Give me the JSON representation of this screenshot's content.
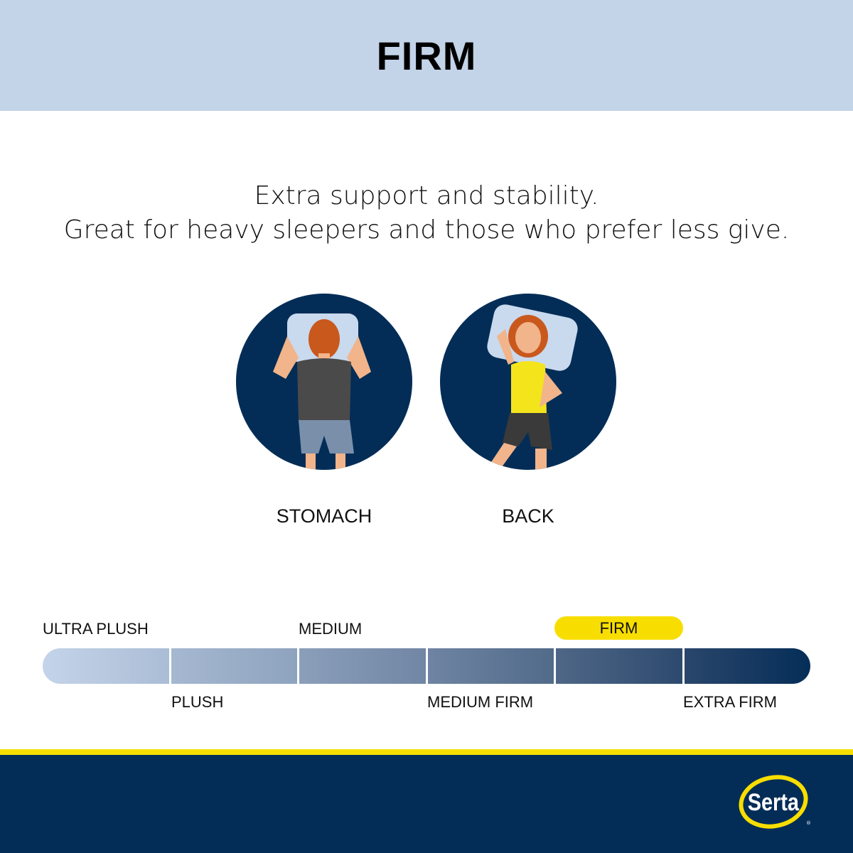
{
  "header": {
    "title": "FIRM"
  },
  "description": {
    "line1": "Extra support and stability.",
    "line2": "Great for heavy sleepers and those who prefer less give."
  },
  "positions": [
    {
      "label": "STOMACH",
      "icon": "stomach-sleeper-illustration"
    },
    {
      "label": "BACK",
      "icon": "back-sleeper-illustration"
    }
  ],
  "scale": {
    "levels": [
      "ULTRA PLUSH",
      "PLUSH",
      "MEDIUM",
      "MEDIUM FIRM",
      "FIRM",
      "EXTRA FIRM"
    ],
    "selected": "FIRM",
    "selected_index": 4,
    "highlight_color": "#f8de00"
  },
  "colors": {
    "header": "#c3d3e8",
    "footer": "#032d57",
    "accent": "#f8de00"
  },
  "brand": {
    "logo": "Serta"
  }
}
